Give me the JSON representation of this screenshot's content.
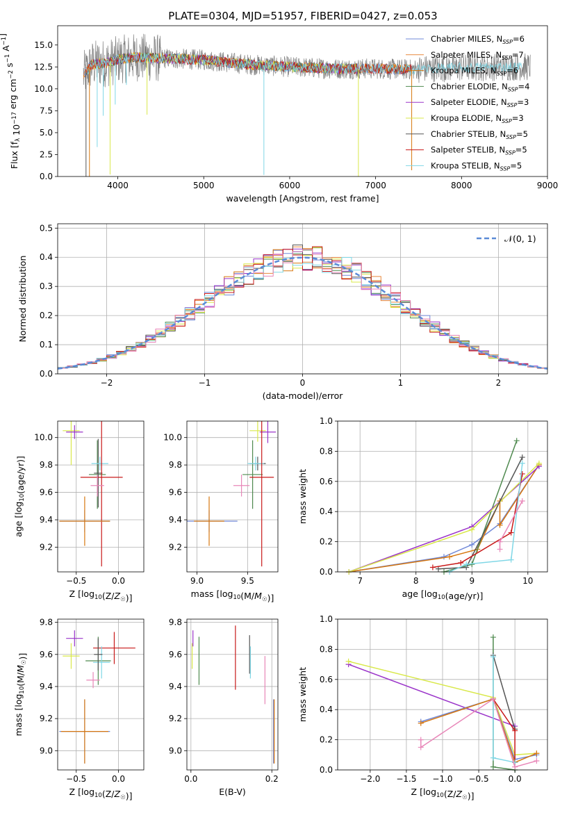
{
  "title": "PLATE=0304, MJD=51957, FIBERID=0427, z=0.053",
  "colors": {
    "Chabrier MILES": "#6f88d8",
    "Salpeter MILES": "#e8883c",
    "Kroupa MILES": "#d7770e",
    "Chabrier ELODIE": "#4f8a4f",
    "Salpeter ELODIE": "#9a33c9",
    "Kroupa ELODIE": "#d9e84a",
    "Chabrier STELIB": "#555555",
    "Salpeter STELIB": "#c81818",
    "Kroupa STELIB": "#7fd7e6",
    "pink": "#e886b8",
    "normal": "#5a8ad6"
  },
  "chart_data": [
    {
      "panel": "spectrum",
      "type": "line",
      "xlabel": "wavelength [Angstrom, rest frame]",
      "ylabel": "Flux [f_λ 10^-17 erg cm^-2 s^-1 A^-1]",
      "xlim": [
        3300,
        9000
      ],
      "ylim": [
        0,
        17.2
      ],
      "xticks": [
        4000,
        5000,
        6000,
        7000,
        8000,
        9000
      ],
      "yticks": [
        0.0,
        2.5,
        5.0,
        7.5,
        10.0,
        12.5,
        15.0
      ],
      "legend_position": "top-right",
      "legend": [
        {
          "key": "Chabrier MILES",
          "label": "Chabrier MILES, N",
          "sub": "SSP",
          "tail": "=6"
        },
        {
          "key": "Salpeter MILES",
          "label": "Salpeter MILES, N",
          "sub": "SSP",
          "tail": "=7"
        },
        {
          "key": "Kroupa MILES",
          "label": "Kroupa MILES, N",
          "sub": "SSP",
          "tail": "=6"
        },
        {
          "key": "Chabrier ELODIE",
          "label": "Chabrier ELODIE, N",
          "sub": "SSP",
          "tail": "=4"
        },
        {
          "key": "Salpeter ELODIE",
          "label": "Salpeter ELODIE, N",
          "sub": "SSP",
          "tail": "=3"
        },
        {
          "key": "Kroupa ELODIE",
          "label": "Kroupa ELODIE, N",
          "sub": "SSP",
          "tail": "=3"
        },
        {
          "key": "Chabrier STELIB",
          "label": "Chabrier STELIB, N",
          "sub": "SSP",
          "tail": "=5"
        },
        {
          "key": "Salpeter STELIB",
          "label": "Salpeter STELIB, N",
          "sub": "SSP",
          "tail": "=5"
        },
        {
          "key": "Kroupa STELIB",
          "label": "Kroupa STELIB, N",
          "sub": "SSP",
          "tail": "=5"
        }
      ],
      "continuum": [
        [
          3600,
          11.5
        ],
        [
          3700,
          12.8
        ],
        [
          3900,
          13.0
        ],
        [
          4000,
          13.3
        ],
        [
          4200,
          13.6
        ],
        [
          4500,
          13.5
        ],
        [
          5000,
          13.3
        ],
        [
          5500,
          12.8
        ],
        [
          6000,
          12.5
        ],
        [
          6500,
          12.3
        ],
        [
          7000,
          12.3
        ],
        [
          7400,
          12.2
        ],
        [
          7600,
          12.3
        ],
        [
          8000,
          12.4
        ],
        [
          8500,
          12.5
        ],
        [
          8800,
          12.5
        ]
      ],
      "absorption_lines": [
        {
          "x": 3630,
          "depth": 13.0,
          "key": "Chabrier STELIB"
        },
        {
          "x": 3670,
          "depth": 12.8,
          "key": "Kroupa MILES"
        },
        {
          "x": 3760,
          "depth": 9.5,
          "key": "Kroupa STELIB"
        },
        {
          "x": 3830,
          "depth": 6.0,
          "key": "Kroupa STELIB"
        },
        {
          "x": 3910,
          "depth": 12.8,
          "key": "Kroupa ELODIE"
        },
        {
          "x": 3970,
          "depth": 5.0,
          "key": "Kroupa STELIB"
        },
        {
          "x": 4100,
          "depth": 3.0,
          "key": "Kroupa STELIB"
        },
        {
          "x": 4340,
          "depth": 6.5,
          "key": "Kroupa ELODIE"
        },
        {
          "x": 5700,
          "depth": 12.5,
          "key": "Kroupa STELIB"
        },
        {
          "x": 6800,
          "depth": 12.3,
          "key": "Kroupa ELODIE"
        },
        {
          "x": 7420,
          "depth": 11.5,
          "key": "Kroupa MILES"
        }
      ]
    },
    {
      "panel": "residuals",
      "type": "histogram",
      "xlabel": "(data-model)/error",
      "ylabel": "Normed distribution",
      "xlim": [
        -2.5,
        2.5
      ],
      "ylim": [
        0,
        0.515
      ],
      "xticks": [
        -2,
        -1,
        0,
        1,
        2
      ],
      "yticks": [
        0.0,
        0.1,
        0.2,
        0.3,
        0.4,
        0.5
      ],
      "bin_width": 0.1,
      "legend_position": "top-right",
      "legend": [
        {
          "key": "normal",
          "label": "𝒩(0, 1)"
        }
      ],
      "series_keys": [
        "Chabrier MILES",
        "Salpeter MILES",
        "Kroupa MILES",
        "Chabrier ELODIE",
        "Salpeter ELODIE",
        "Kroupa ELODIE",
        "Chabrier STELIB",
        "Salpeter STELIB",
        "Kroupa STELIB",
        "pink"
      ]
    },
    {
      "panel": "age_vs_Z",
      "type": "errorbar",
      "xlabel": "Z [log10(Z/Z☉)]",
      "ylabel": "age  [log10(age/yr)]",
      "xlim": [
        -0.72,
        0.3
      ],
      "ylim": [
        9.02,
        10.12
      ],
      "xticks": [
        -0.5,
        0.0
      ],
      "yticks": [
        9.2,
        9.4,
        9.6,
        9.8,
        10.0
      ],
      "points": [
        {
          "key": "Kroupa ELODIE",
          "x": -0.56,
          "xerr": 0.1,
          "y": 10.05,
          "yerr": 0.25
        },
        {
          "key": "Salpeter ELODIE",
          "x": -0.52,
          "xerr": 0.1,
          "y": 10.04,
          "yerr": 0.05
        },
        {
          "key": "Chabrier ELODIE",
          "x": -0.25,
          "xerr": 0.1,
          "y": 9.73,
          "yerr": 0.25
        },
        {
          "key": "Chabrier STELIB",
          "x": -0.24,
          "xerr": 0.05,
          "y": 9.74,
          "yerr": 0.25
        },
        {
          "key": "Kroupa STELIB",
          "x": -0.22,
          "xerr": 0.1,
          "y": 9.81,
          "yerr": 0.05
        },
        {
          "key": "Salpeter STELIB",
          "x": -0.2,
          "xerr": 0.25,
          "y": 9.71,
          "yerr": 0.65
        },
        {
          "key": "pink",
          "x": -0.25,
          "xerr": 0.08,
          "y": 9.65,
          "yerr": 0.08
        },
        {
          "key": "Chabrier MILES",
          "x": -0.4,
          "xerr": 0.3,
          "y": 9.39,
          "yerr": 0.08
        },
        {
          "key": "Kroupa MILES",
          "x": -0.4,
          "xerr": 0.3,
          "y": 9.39,
          "yerr": 0.18
        }
      ]
    },
    {
      "panel": "age_vs_mass",
      "type": "errorbar",
      "xlabel": "mass [log10(M/M☉)]",
      "ylabel": "",
      "xlim": [
        8.9,
        9.8
      ],
      "ylim": [
        9.02,
        10.12
      ],
      "xticks": [
        9.0,
        9.5
      ],
      "yticks": [
        9.2,
        9.4,
        9.6,
        9.8,
        10.0
      ],
      "points": [
        {
          "key": "Kroupa ELODIE",
          "x": 9.6,
          "xerr": 0.08,
          "y": 10.05,
          "yerr": 0.08
        },
        {
          "key": "Salpeter ELODIE",
          "x": 9.7,
          "xerr": 0.08,
          "y": 10.04,
          "yerr": 0.08
        },
        {
          "key": "Chabrier ELODIE",
          "x": 9.55,
          "xerr": 0.1,
          "y": 9.73,
          "yerr": 0.25
        },
        {
          "key": "Chabrier STELIB",
          "x": 9.6,
          "xerr": 0.08,
          "y": 9.81,
          "yerr": 0.05
        },
        {
          "key": "Kroupa STELIB",
          "x": 9.58,
          "xerr": 0.08,
          "y": 9.81,
          "yerr": 0.05
        },
        {
          "key": "Salpeter STELIB",
          "x": 9.64,
          "xerr": 0.12,
          "y": 9.71,
          "yerr": 0.65
        },
        {
          "key": "pink",
          "x": 9.44,
          "xerr": 0.08,
          "y": 9.65,
          "yerr": 0.08
        },
        {
          "key": "Chabrier MILES",
          "x": 9.12,
          "xerr": 0.28,
          "y": 9.39,
          "yerr": 0.08
        },
        {
          "key": "Kroupa MILES",
          "x": 9.12,
          "xerr": 0.15,
          "y": 9.39,
          "yerr": 0.18
        }
      ]
    },
    {
      "panel": "weight_vs_age",
      "type": "line",
      "xlabel": "age  [log10(age/yr)]",
      "ylabel": "mass weight",
      "xlim": [
        6.6,
        10.35
      ],
      "ylim": [
        0,
        1.0
      ],
      "xticks": [
        7,
        8,
        9,
        10
      ],
      "yticks": [
        0.0,
        0.2,
        0.4,
        0.6,
        0.8,
        1.0
      ],
      "series": [
        {
          "key": "Chabrier MILES",
          "points": [
            [
              6.8,
              0.0
            ],
            [
              8.5,
              0.1
            ],
            [
              9.0,
              0.18
            ],
            [
              9.5,
              0.32
            ],
            [
              10.2,
              0.71
            ]
          ]
        },
        {
          "key": "Kroupa MILES",
          "points": [
            [
              6.8,
              0.0
            ],
            [
              8.6,
              0.1
            ],
            [
              9.1,
              0.15
            ],
            [
              9.5,
              0.47
            ],
            [
              9.5,
              0.31
            ],
            [
              10.2,
              0.71
            ]
          ]
        },
        {
          "key": "Chabrier ELODIE",
          "points": [
            [
              8.5,
              0.0
            ],
            [
              9.0,
              0.05
            ],
            [
              9.8,
              0.87
            ]
          ]
        },
        {
          "key": "Salpeter ELODIE",
          "points": [
            [
              6.8,
              0.0
            ],
            [
              9.0,
              0.3
            ],
            [
              10.2,
              0.7
            ]
          ]
        },
        {
          "key": "Kroupa ELODIE",
          "points": [
            [
              6.8,
              0.0
            ],
            [
              9.0,
              0.28
            ],
            [
              10.2,
              0.72
            ]
          ]
        },
        {
          "key": "Chabrier STELIB",
          "points": [
            [
              8.4,
              0.02
            ],
            [
              8.9,
              0.03
            ],
            [
              9.9,
              0.76
            ]
          ]
        },
        {
          "key": "Salpeter STELIB",
          "points": [
            [
              8.3,
              0.03
            ],
            [
              8.8,
              0.06
            ],
            [
              9.7,
              0.26
            ],
            [
              9.9,
              0.65
            ]
          ]
        },
        {
          "key": "Kroupa STELIB",
          "points": [
            [
              8.6,
              0.0
            ],
            [
              8.9,
              0.05
            ],
            [
              9.7,
              0.08
            ],
            [
              9.9,
              0.72
            ]
          ]
        },
        {
          "key": "pink",
          "points": [
            [
              9.5,
              0.15
            ],
            [
              9.5,
              0.2
            ],
            [
              9.9,
              0.47
            ]
          ]
        }
      ]
    },
    {
      "panel": "mass_vs_Z",
      "type": "errorbar",
      "xlabel": "Z [log10(Z/Z☉)]",
      "ylabel": "mass [log10(M/M☉)]",
      "xlim": [
        -0.72,
        0.3
      ],
      "ylim": [
        8.88,
        9.82
      ],
      "xticks": [
        -0.5,
        0.0
      ],
      "yticks": [
        9.0,
        9.2,
        9.4,
        9.6,
        9.8
      ],
      "points": [
        {
          "key": "Salpeter ELODIE",
          "x": -0.52,
          "xerr": 0.1,
          "y": 9.7,
          "yerr": 0.05
        },
        {
          "key": "Kroupa ELODIE",
          "x": -0.56,
          "xerr": 0.1,
          "y": 9.59,
          "yerr": 0.08
        },
        {
          "key": "Chabrier ELODIE",
          "x": -0.24,
          "xerr": 0.15,
          "y": 9.56,
          "yerr": 0.15
        },
        {
          "key": "Salpeter STELIB",
          "x": -0.05,
          "xerr": 0.25,
          "y": 9.64,
          "yerr": 0.1
        },
        {
          "key": "Kroupa STELIB",
          "x": -0.2,
          "xerr": 0.1,
          "y": 9.55,
          "yerr": 0.1
        },
        {
          "key": "Chabrier STELIB",
          "x": -0.24,
          "xerr": 0.05,
          "y": 9.6,
          "yerr": 0.1
        },
        {
          "key": "pink",
          "x": -0.3,
          "xerr": 0.08,
          "y": 9.44,
          "yerr": 0.05
        },
        {
          "key": "Chabrier MILES",
          "x": -0.4,
          "xerr": 0.3,
          "y": 9.12,
          "yerr": 0.2
        },
        {
          "key": "Kroupa MILES",
          "x": -0.4,
          "xerr": 0.28,
          "y": 9.12,
          "yerr": 0.2
        }
      ]
    },
    {
      "panel": "mass_vs_EBV",
      "type": "errorbar",
      "xlabel": "E(B-V)",
      "ylabel": "",
      "xlim": [
        -0.01,
        0.215
      ],
      "ylim": [
        8.88,
        9.82
      ],
      "xticks": [
        0.0,
        0.2
      ],
      "yticks": [
        9.0,
        9.2,
        9.4,
        9.6,
        9.8
      ],
      "points": [
        {
          "key": "Kroupa ELODIE",
          "x": 0.003,
          "xerr": 0,
          "y": 9.59,
          "yerr": 0.08
        },
        {
          "key": "Salpeter ELODIE",
          "x": 0.005,
          "xerr": 0,
          "y": 9.7,
          "yerr": 0.05
        },
        {
          "key": "Chabrier ELODIE",
          "x": 0.02,
          "xerr": 0,
          "y": 9.56,
          "yerr": 0.15
        },
        {
          "key": "Salpeter STELIB",
          "x": 0.11,
          "xerr": 0,
          "y": 9.58,
          "yerr": 0.2
        },
        {
          "key": "Chabrier STELIB",
          "x": 0.145,
          "xerr": 0,
          "y": 9.6,
          "yerr": 0.12
        },
        {
          "key": "Kroupa STELIB",
          "x": 0.147,
          "xerr": 0,
          "y": 9.55,
          "yerr": 0.1
        },
        {
          "key": "pink",
          "x": 0.183,
          "xerr": 0,
          "y": 9.44,
          "yerr": 0.15
        },
        {
          "key": "Chabrier MILES",
          "x": 0.204,
          "xerr": 0,
          "y": 9.12,
          "yerr": 0.2
        },
        {
          "key": "Kroupa MILES",
          "x": 0.206,
          "xerr": 0,
          "y": 9.12,
          "yerr": 0.2
        }
      ]
    },
    {
      "panel": "weight_vs_Z",
      "type": "line",
      "xlabel": "Z [log10(Z/Z☉)]",
      "ylabel": "mass weight",
      "xlim": [
        -2.45,
        0.45
      ],
      "ylim": [
        0,
        1.0
      ],
      "xticks": [
        -2.0,
        -1.5,
        -1.0,
        -0.5,
        0.0
      ],
      "yticks": [
        0.0,
        0.2,
        0.4,
        0.6,
        0.8,
        1.0
      ],
      "series": [
        {
          "key": "Salpeter ELODIE",
          "points": [
            [
              -2.3,
              0.7
            ],
            [
              0.0,
              0.29
            ]
          ]
        },
        {
          "key": "Kroupa ELODIE",
          "points": [
            [
              -2.3,
              0.72
            ],
            [
              -0.3,
              0.48
            ],
            [
              0.0,
              0.1
            ],
            [
              0.3,
              0.11
            ]
          ]
        },
        {
          "key": "Chabrier MILES",
          "points": [
            [
              -1.3,
              0.32
            ],
            [
              -0.3,
              0.47
            ],
            [
              0.0,
              0.07
            ],
            [
              0.3,
              0.1
            ]
          ]
        },
        {
          "key": "Kroupa MILES",
          "points": [
            [
              -1.3,
              0.31
            ],
            [
              -0.3,
              0.47
            ],
            [
              0.0,
              0.05
            ],
            [
              0.3,
              0.11
            ]
          ]
        },
        {
          "key": "Chabrier ELODIE",
          "points": [
            [
              -0.3,
              0.88
            ],
            [
              -0.3,
              0.02
            ],
            [
              0.0,
              0.0
            ]
          ]
        },
        {
          "key": "Chabrier STELIB",
          "points": [
            [
              -0.3,
              0.76
            ],
            [
              0.0,
              0.27
            ]
          ]
        },
        {
          "key": "Salpeter STELIB",
          "points": [
            [
              -0.3,
              0.47
            ],
            [
              0.0,
              0.26
            ],
            [
              0.0,
              0.05
            ]
          ]
        },
        {
          "key": "Kroupa STELIB",
          "points": [
            [
              -0.3,
              0.75
            ],
            [
              -0.3,
              0.08
            ],
            [
              0.0,
              0.05
            ]
          ]
        },
        {
          "key": "pink",
          "points": [
            [
              -1.3,
              0.2
            ],
            [
              -1.3,
              0.15
            ],
            [
              -0.3,
              0.47
            ],
            [
              0.0,
              0.02
            ],
            [
              0.3,
              0.06
            ]
          ]
        }
      ]
    }
  ]
}
